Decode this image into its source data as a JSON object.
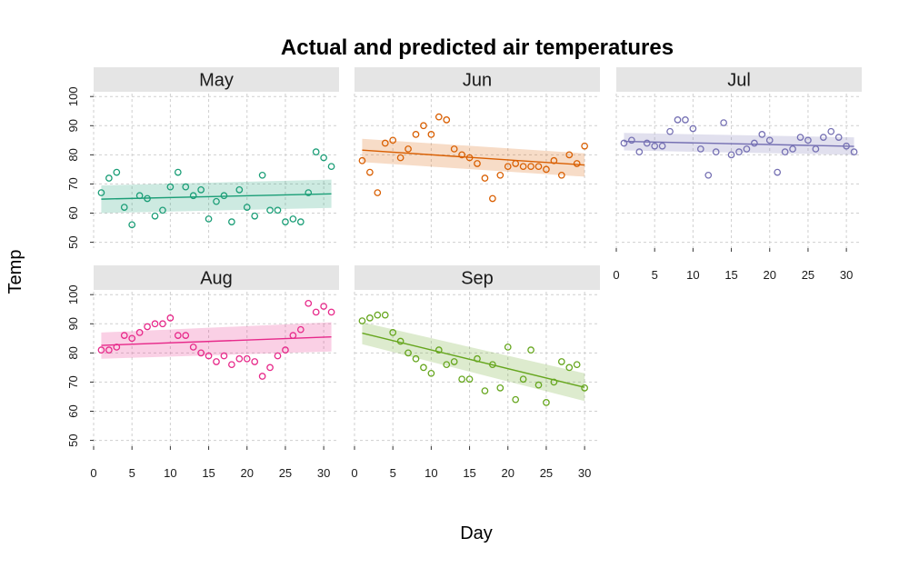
{
  "chart_data": {
    "type": "scatter",
    "title": "Actual and predicted air temperatures",
    "xlabel": "Day",
    "ylabel": "Temp",
    "xlim": [
      0,
      32
    ],
    "ylim": [
      48,
      101
    ],
    "x_ticks": [
      0,
      5,
      10,
      15,
      20,
      25,
      30
    ],
    "y_ticks": [
      50,
      60,
      70,
      80,
      90,
      100
    ],
    "grid": true,
    "facets": [
      {
        "name": "May",
        "color": "#1B9E77",
        "band_color": "#1B9E77",
        "trend": {
          "start": [
            1,
            64.8
          ],
          "end": [
            31,
            66.6
          ]
        },
        "band": {
          "start_low": 60.0,
          "start_high": 69.5,
          "end_low": 61.8,
          "end_high": 71.5
        },
        "x": [
          1,
          2,
          3,
          4,
          5,
          6,
          7,
          8,
          9,
          10,
          11,
          12,
          13,
          14,
          15,
          16,
          17,
          18,
          19,
          20,
          21,
          22,
          23,
          24,
          25,
          26,
          27,
          28,
          29,
          30,
          31
        ],
        "values": [
          67,
          72,
          74,
          62,
          56,
          66,
          65,
          59,
          61,
          69,
          74,
          69,
          66,
          68,
          58,
          64,
          66,
          57,
          68,
          62,
          59,
          73,
          61,
          61,
          57,
          58,
          57,
          67,
          81,
          79,
          76
        ]
      },
      {
        "name": "Jun",
        "color": "#D95F02",
        "band_color": "#D95F02",
        "trend": {
          "start": [
            1,
            81.6
          ],
          "end": [
            30,
            76.5
          ]
        },
        "band": {
          "start_low": 77.5,
          "start_high": 85.5,
          "end_low": 72.5,
          "end_high": 80.5
        },
        "x": [
          1,
          2,
          3,
          4,
          5,
          6,
          7,
          8,
          9,
          10,
          11,
          12,
          13,
          14,
          15,
          16,
          17,
          18,
          19,
          20,
          21,
          22,
          23,
          24,
          25,
          26,
          27,
          28,
          29,
          30
        ],
        "values": [
          78,
          74,
          67,
          84,
          85,
          79,
          82,
          87,
          90,
          87,
          93,
          92,
          82,
          80,
          79,
          77,
          72,
          65,
          73,
          76,
          77,
          76,
          76,
          76,
          75,
          78,
          73,
          80,
          77,
          83
        ]
      },
      {
        "name": "Jul",
        "color": "#7570B3",
        "band_color": "#7570B3",
        "trend": {
          "start": [
            1,
            84.6
          ],
          "end": [
            31,
            82.9
          ]
        },
        "band": {
          "start_low": 81.5,
          "start_high": 87.5,
          "end_low": 80.0,
          "end_high": 86.0
        },
        "x": [
          1,
          2,
          3,
          4,
          5,
          6,
          7,
          8,
          9,
          10,
          11,
          12,
          13,
          14,
          15,
          16,
          17,
          18,
          19,
          20,
          21,
          22,
          23,
          24,
          25,
          26,
          27,
          28,
          29,
          30,
          31
        ],
        "values": [
          84,
          85,
          81,
          84,
          83,
          83,
          88,
          92,
          92,
          89,
          82,
          73,
          81,
          91,
          80,
          81,
          82,
          84,
          87,
          85,
          74,
          81,
          82,
          86,
          85,
          82,
          86,
          88,
          86,
          83,
          81
        ]
      },
      {
        "name": "Aug",
        "color": "#E7298A",
        "band_color": "#E7298A",
        "trend": {
          "start": [
            1,
            82.6
          ],
          "end": [
            31,
            85.5
          ]
        },
        "band": {
          "start_low": 78.0,
          "start_high": 87.0,
          "end_low": 80.5,
          "end_high": 90.5
        },
        "x": [
          1,
          2,
          3,
          4,
          5,
          6,
          7,
          8,
          9,
          10,
          11,
          12,
          13,
          14,
          15,
          16,
          17,
          18,
          19,
          20,
          21,
          22,
          23,
          24,
          25,
          26,
          27,
          28,
          29,
          30,
          31
        ],
        "values": [
          81,
          81,
          82,
          86,
          85,
          87,
          89,
          90,
          90,
          92,
          86,
          86,
          82,
          80,
          79,
          77,
          79,
          76,
          78,
          78,
          77,
          72,
          75,
          79,
          81,
          86,
          88,
          97,
          94,
          96,
          94
        ]
      },
      {
        "name": "Sep",
        "color": "#66A61E",
        "band_color": "#66A61E",
        "trend": {
          "start": [
            1,
            86.8
          ],
          "end": [
            30,
            68.2
          ]
        },
        "band": {
          "start_low": 83.0,
          "start_high": 90.5,
          "end_low": 63.5,
          "end_high": 73.0
        },
        "x": [
          1,
          2,
          3,
          4,
          5,
          6,
          7,
          8,
          9,
          10,
          11,
          12,
          13,
          14,
          15,
          16,
          17,
          18,
          19,
          20,
          21,
          22,
          23,
          24,
          25,
          26,
          27,
          28,
          29,
          30
        ],
        "values": [
          91,
          92,
          93,
          93,
          87,
          84,
          80,
          78,
          75,
          73,
          81,
          76,
          77,
          71,
          71,
          78,
          67,
          76,
          68,
          82,
          64,
          71,
          81,
          69,
          63,
          70,
          77,
          75,
          76,
          68
        ]
      }
    ]
  }
}
